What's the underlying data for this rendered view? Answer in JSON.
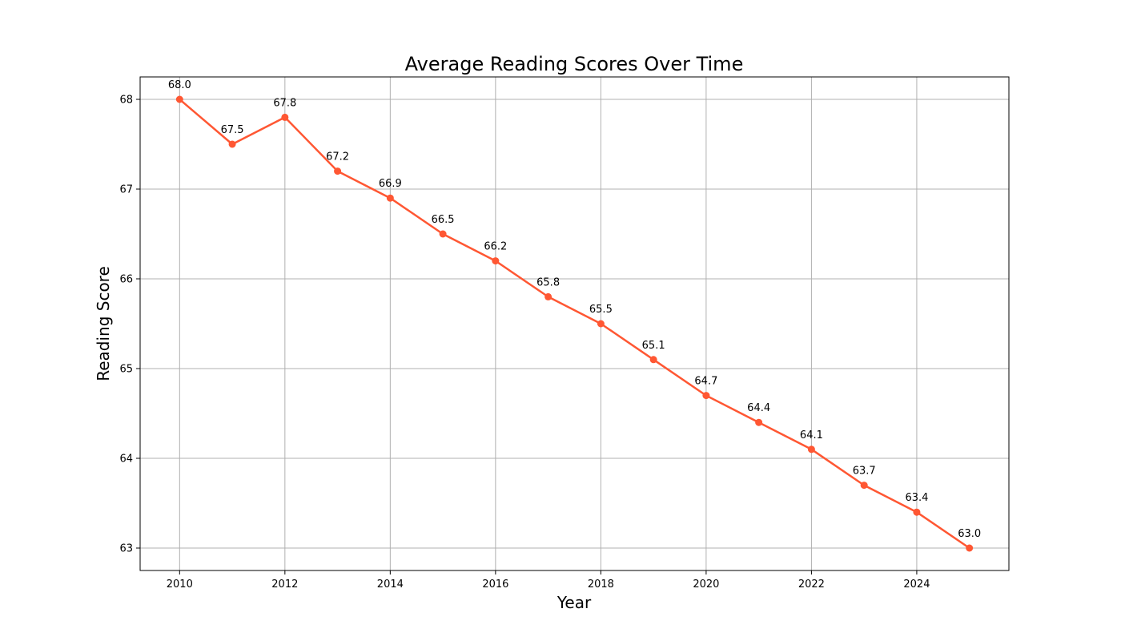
{
  "chart_data": {
    "type": "line",
    "title": "Average Reading Scores Over Time",
    "xlabel": "Year",
    "ylabel": "Reading Score",
    "x": [
      2010,
      2011,
      2012,
      2013,
      2014,
      2015,
      2016,
      2017,
      2018,
      2019,
      2020,
      2021,
      2022,
      2023,
      2024,
      2025
    ],
    "series": [
      {
        "values": [
          68.0,
          67.5,
          67.8,
          67.2,
          66.9,
          66.5,
          66.2,
          65.8,
          65.5,
          65.1,
          64.7,
          64.4,
          64.1,
          63.7,
          63.4,
          63.0
        ],
        "labels": [
          "68.0",
          "67.5",
          "67.8",
          "67.2",
          "66.9",
          "66.5",
          "66.2",
          "65.8",
          "65.5",
          "65.1",
          "64.7",
          "64.4",
          "64.1",
          "63.7",
          "63.4",
          "63.0"
        ],
        "color": "#ff5733"
      }
    ],
    "xticks": [
      2010,
      2012,
      2014,
      2016,
      2018,
      2020,
      2022,
      2024
    ],
    "yticks": [
      63,
      64,
      65,
      66,
      67,
      68
    ],
    "xlim": [
      2009.25,
      2025.75
    ],
    "ylim": [
      62.75,
      68.25
    ],
    "grid": true,
    "grid_color": "#b0b0b0",
    "axis_color": "#000000"
  }
}
